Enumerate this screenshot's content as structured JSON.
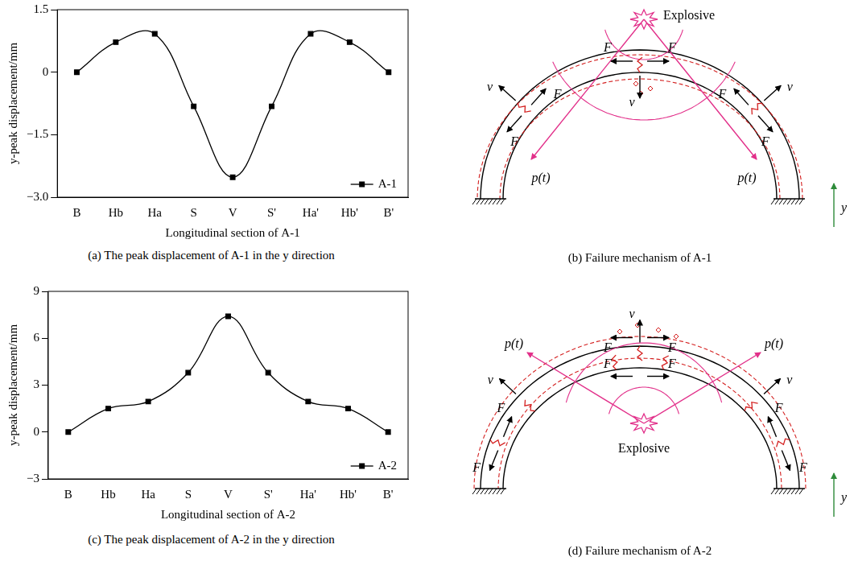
{
  "chart_data": [
    {
      "type": "line",
      "xlabel": "Longitudinal section of A-1",
      "ylabel": "y-peak displacement/mm",
      "caption": "(a) The peak displacement of A-1 in the y direction",
      "categories": [
        "B",
        "Hb",
        "Ha",
        "S",
        "V",
        "S'",
        "Ha'",
        "Hb'",
        "B'"
      ],
      "series": [
        {
          "name": "A-1",
          "color": "#000000",
          "marker": "square",
          "line_style": "solid",
          "values": [
            0,
            0.72,
            0.92,
            -0.82,
            -2.52,
            -0.82,
            0.92,
            0.72,
            0
          ]
        }
      ],
      "ylim": [
        -3,
        1.5
      ],
      "yticks": [
        {
          "value": -3,
          "label": "−3.0"
        },
        {
          "value": -1.5,
          "label": "−1.5"
        },
        0,
        1.5
      ],
      "grid": false,
      "legend": "lower right"
    },
    {
      "type": "line",
      "xlabel": "Longitudinal section of A-2",
      "ylabel": "y-peak displacement/mm",
      "caption": "(c) The peak displacement of A-2 in the y direction",
      "categories": [
        "B",
        "Hb",
        "Ha",
        "S",
        "V",
        "S'",
        "Ha'",
        "Hb'",
        "B'"
      ],
      "series": [
        {
          "name": "A-2",
          "color": "#000000",
          "marker": "square",
          "line_style": "solid",
          "values": [
            0,
            1.5,
            1.95,
            3.8,
            7.4,
            3.8,
            1.95,
            1.5,
            0
          ]
        }
      ],
      "ylim": [
        -3,
        9
      ],
      "yticks": [
        {
          "value": -3,
          "label": "−3"
        },
        0,
        3,
        6,
        9
      ],
      "grid": false,
      "legend": "lower right"
    }
  ],
  "diagrams": [
    {
      "caption": "(b) Failure mechanism of A-1",
      "explosive": "Explosive",
      "forces": [
        "F",
        "F",
        "F",
        "F",
        "F",
        "F"
      ],
      "velocities": [
        "v",
        "v",
        "v"
      ],
      "pressures": [
        "p(t)",
        "p(t)"
      ],
      "axis": "y"
    },
    {
      "caption": "(d) Failure mechanism of A-2",
      "explosive": "Explosive",
      "forces": [
        "F",
        "F",
        "F",
        "F",
        "F",
        "F",
        "F",
        "F"
      ],
      "velocities": [
        "v",
        "v",
        "v"
      ],
      "pressures": [
        "p(t)",
        "p(t)"
      ],
      "axis": "y"
    }
  ]
}
